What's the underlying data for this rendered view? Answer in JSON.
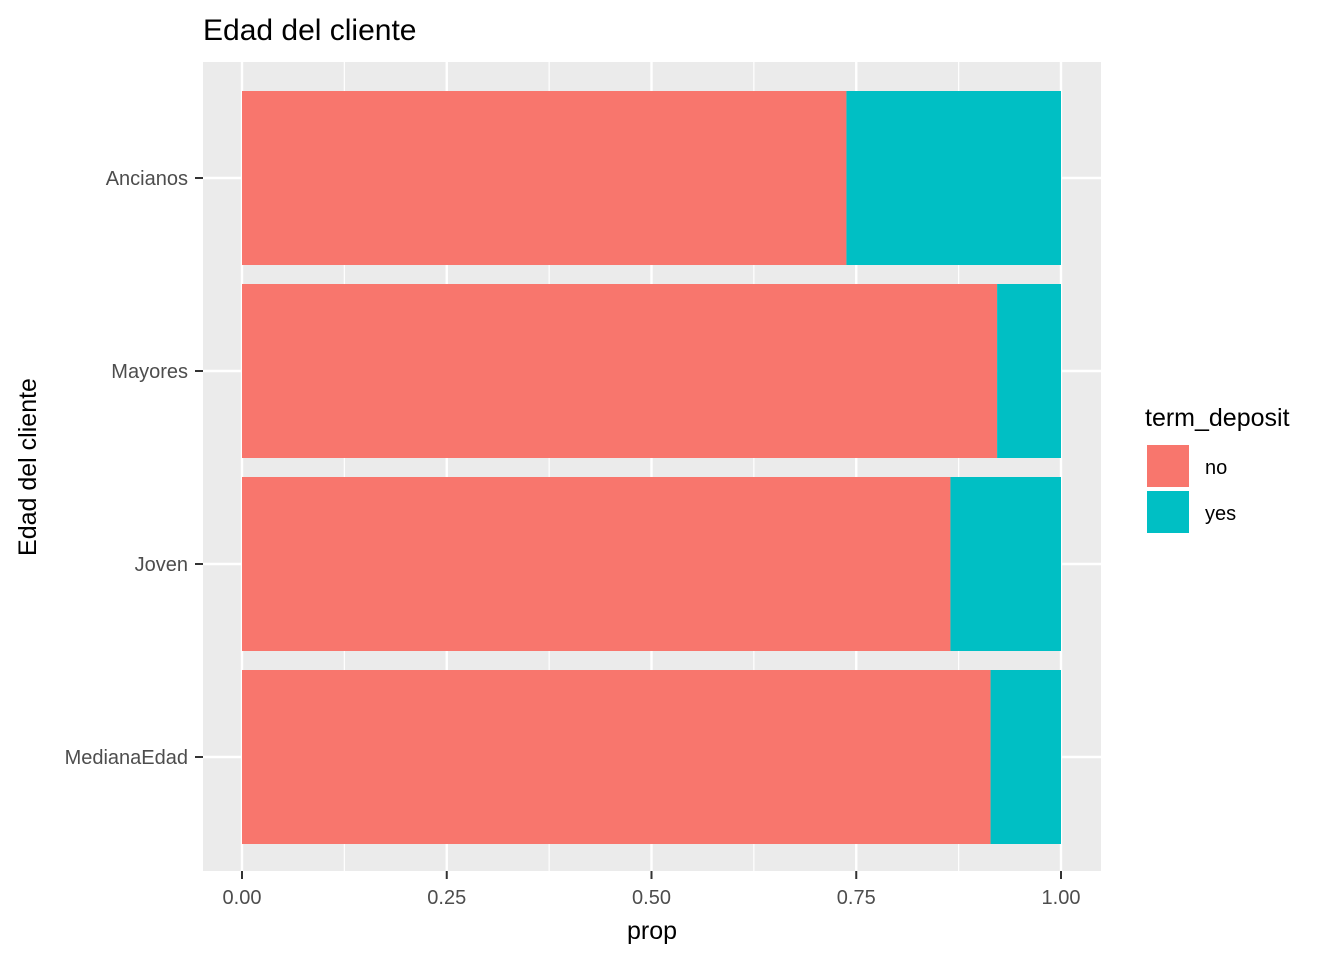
{
  "chart_data": {
    "type": "bar",
    "orientation": "horizontal",
    "stacked": true,
    "title": "Edad del cliente",
    "xlabel": "prop",
    "ylabel": "Edad del cliente",
    "xlim": [
      0,
      1
    ],
    "x_ticks": [
      "0.00",
      "0.25",
      "0.50",
      "0.75",
      "1.00"
    ],
    "categories": [
      "Ancianos",
      "Mayores",
      "Joven",
      "MedianaEdad"
    ],
    "series": [
      {
        "name": "no",
        "color": "#F8766D",
        "values": [
          0.738,
          0.922,
          0.865,
          0.914
        ]
      },
      {
        "name": "yes",
        "color": "#00BFC4",
        "values": [
          0.262,
          0.078,
          0.135,
          0.086
        ]
      }
    ],
    "legend": {
      "title": "term_deposit",
      "position": "right"
    },
    "grid": true,
    "panel_background": "#EBEBEB",
    "grid_color": "#FFFFFF"
  }
}
